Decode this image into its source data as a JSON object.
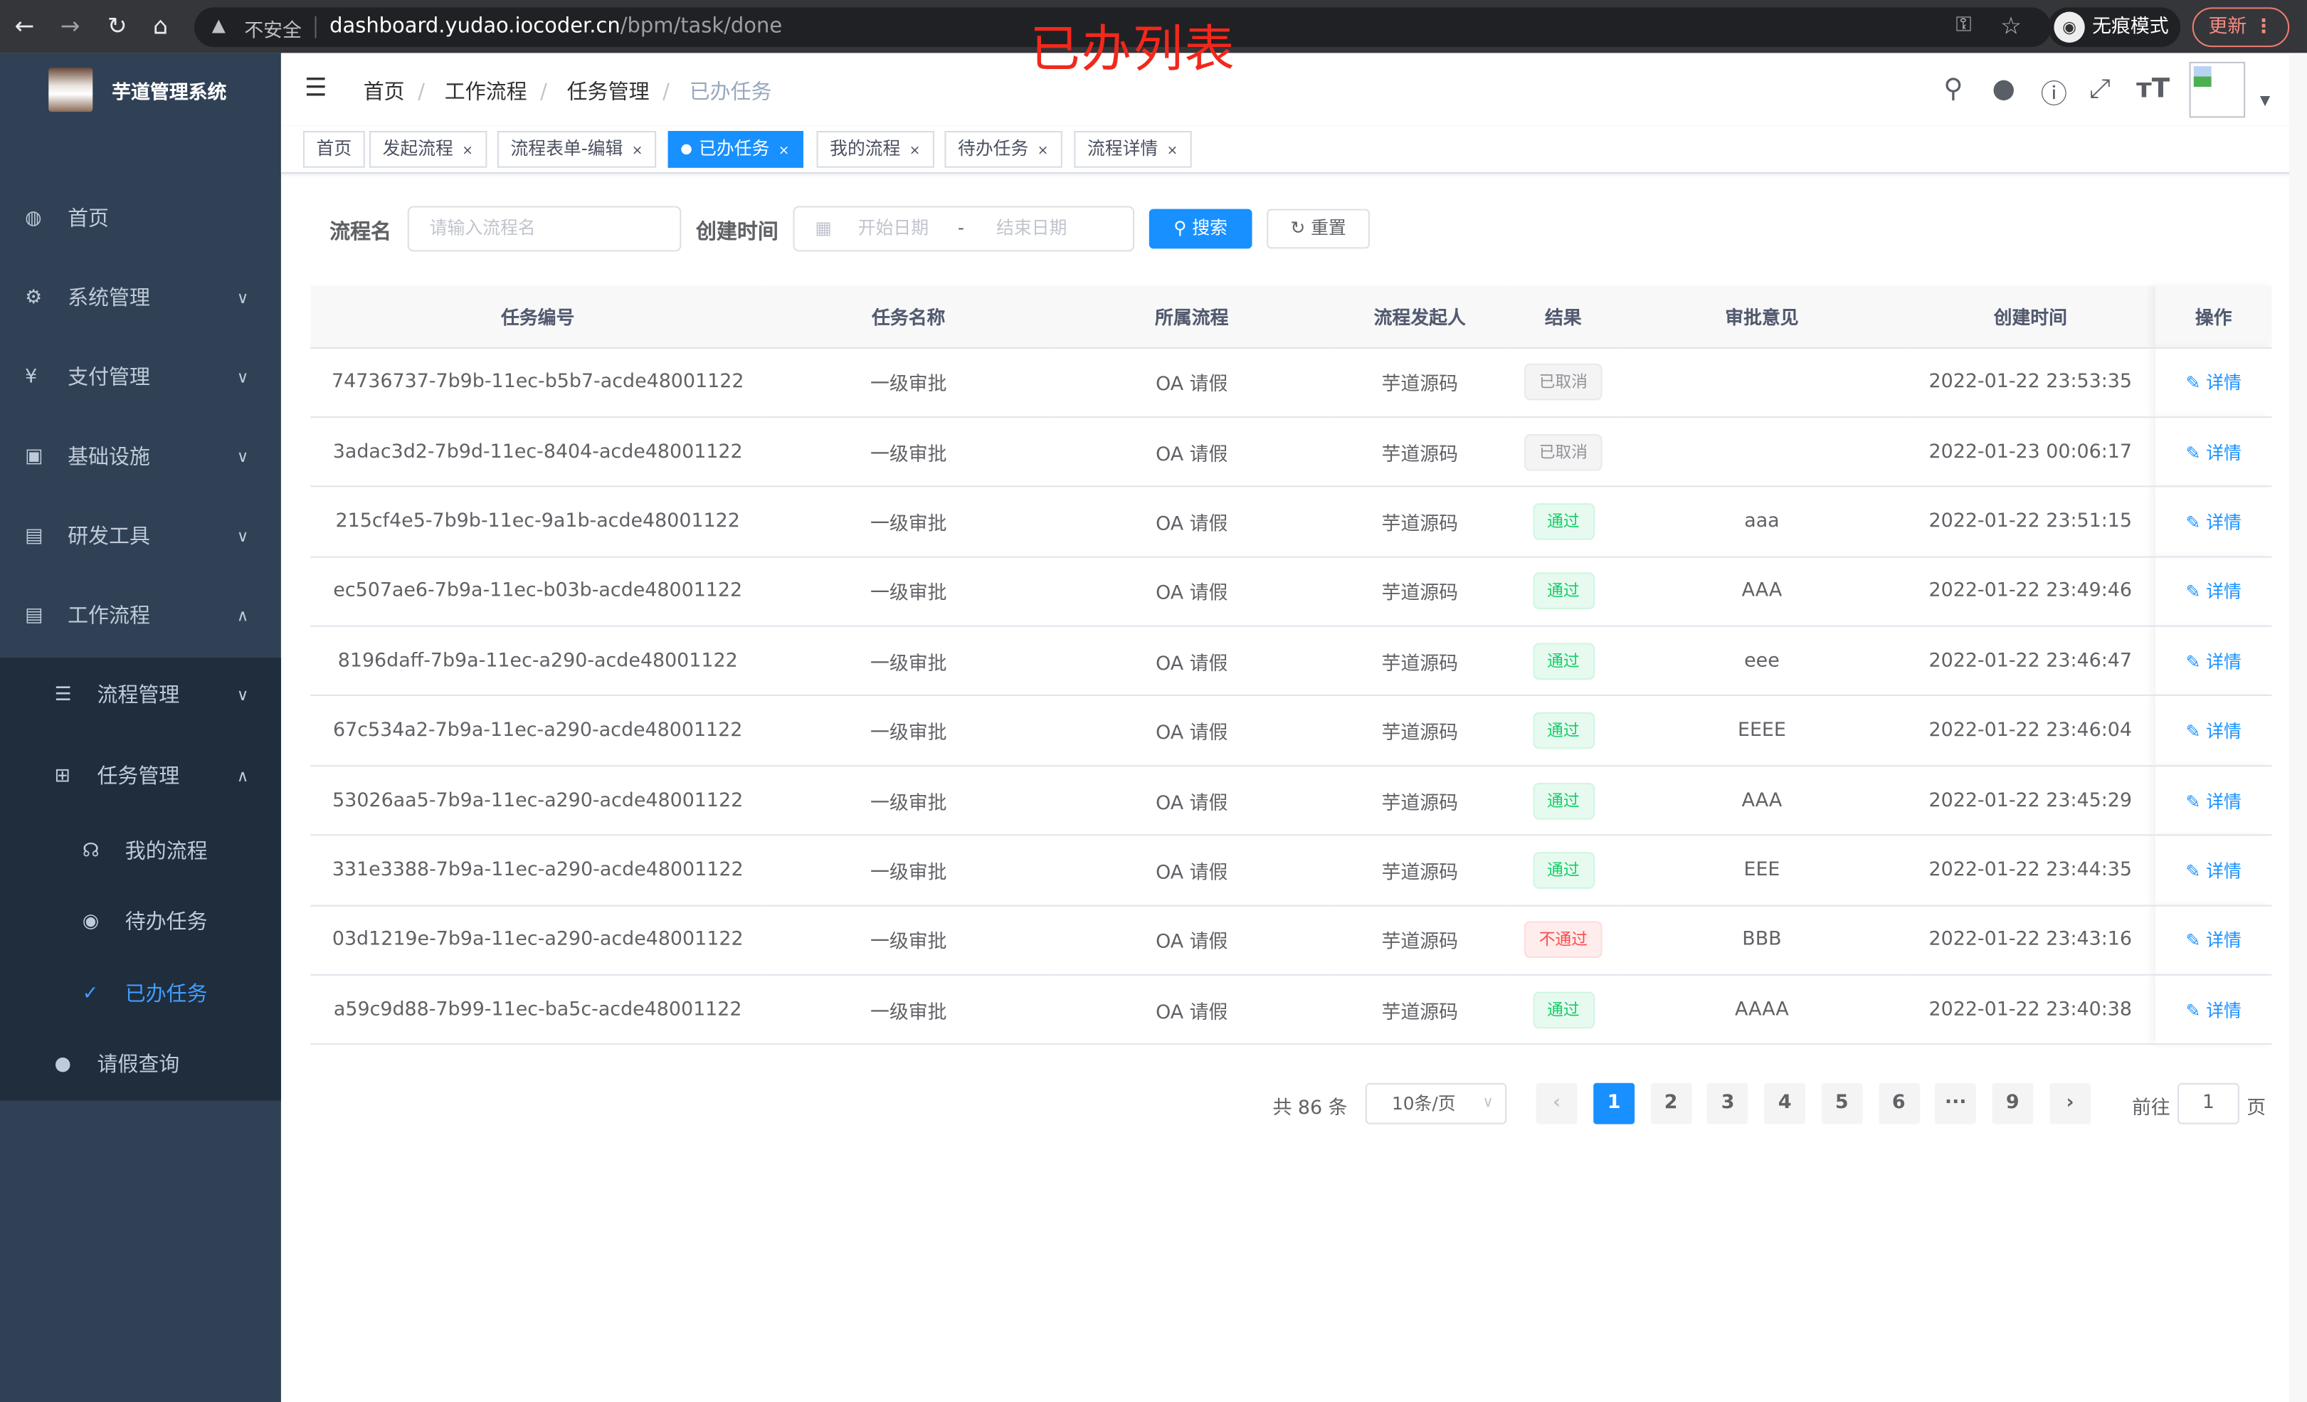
{
  "browser": {
    "insecure_label": "不安全",
    "url_host": "dashboard.yudao.iocoder.cn",
    "url_path": "/bpm/task/done",
    "incognito_label": "无痕模式",
    "update_label": "更新"
  },
  "overlay_title": "已办列表",
  "sidebar": {
    "brand": "芋道管理系统",
    "items": [
      {
        "label": "首页",
        "icon": "dashboard-icon"
      },
      {
        "label": "系统管理",
        "icon": "gear-icon"
      },
      {
        "label": "支付管理",
        "icon": "yen-icon"
      },
      {
        "label": "基础设施",
        "icon": "monitor-icon"
      },
      {
        "label": "研发工具",
        "icon": "toolbox-icon"
      },
      {
        "label": "工作流程",
        "icon": "toolbox-icon"
      },
      {
        "label": "流程管理",
        "icon": "list-icon"
      },
      {
        "label": "任务管理",
        "icon": "tree-icon"
      },
      {
        "label": "我的流程",
        "icon": "headset-icon"
      },
      {
        "label": "待办任务",
        "icon": "eye-icon"
      },
      {
        "label": "已办任务",
        "icon": "done-icon"
      },
      {
        "label": "请假查询",
        "icon": "user-icon"
      }
    ]
  },
  "breadcrumb": [
    "首页",
    "工作流程",
    "任务管理",
    "已办任务"
  ],
  "tags": [
    {
      "label": "首页"
    },
    {
      "label": "发起流程"
    },
    {
      "label": "流程表单-编辑"
    },
    {
      "label": "已办任务",
      "active": true
    },
    {
      "label": "我的流程"
    },
    {
      "label": "待办任务"
    },
    {
      "label": "流程详情"
    }
  ],
  "search": {
    "name_label": "流程名",
    "name_placeholder": "请输入流程名",
    "time_label": "创建时间",
    "start_placeholder": "开始日期",
    "range_sep": "-",
    "end_placeholder": "结束日期",
    "search_btn": "搜索",
    "reset_btn": "重置"
  },
  "table": {
    "headers": [
      "任务编号",
      "任务名称",
      "所属流程",
      "流程发起人",
      "结果",
      "审批意见",
      "创建时间",
      "操作"
    ],
    "detail_label": "详情",
    "rows": [
      [
        "74736737-7b9b-11ec-b5b7-acde48001122",
        "一级审批",
        "OA 请假",
        "芋道源码",
        "已取消",
        "",
        "2022-01-22 23:53:35"
      ],
      [
        "3adac3d2-7b9d-11ec-8404-acde48001122",
        "一级审批",
        "OA 请假",
        "芋道源码",
        "已取消",
        "",
        "2022-01-23 00:06:17"
      ],
      [
        "215cf4e5-7b9b-11ec-9a1b-acde48001122",
        "一级审批",
        "OA 请假",
        "芋道源码",
        "通过",
        "aaa",
        "2022-01-22 23:51:15"
      ],
      [
        "ec507ae6-7b9a-11ec-b03b-acde48001122",
        "一级审批",
        "OA 请假",
        "芋道源码",
        "通过",
        "AAA",
        "2022-01-22 23:49:46"
      ],
      [
        "8196daff-7b9a-11ec-a290-acde48001122",
        "一级审批",
        "OA 请假",
        "芋道源码",
        "通过",
        "eee",
        "2022-01-22 23:46:47"
      ],
      [
        "67c534a2-7b9a-11ec-a290-acde48001122",
        "一级审批",
        "OA 请假",
        "芋道源码",
        "通过",
        "EEEE",
        "2022-01-22 23:46:04"
      ],
      [
        "53026aa5-7b9a-11ec-a290-acde48001122",
        "一级审批",
        "OA 请假",
        "芋道源码",
        "通过",
        "AAA",
        "2022-01-22 23:45:29"
      ],
      [
        "331e3388-7b9a-11ec-a290-acde48001122",
        "一级审批",
        "OA 请假",
        "芋道源码",
        "通过",
        "EEE",
        "2022-01-22 23:44:35"
      ],
      [
        "03d1219e-7b9a-11ec-a290-acde48001122",
        "一级审批",
        "OA 请假",
        "芋道源码",
        "不通过",
        "BBB",
        "2022-01-22 23:43:16"
      ],
      [
        "a59c9d88-7b99-11ec-ba5c-acde48001122",
        "一级审批",
        "OA 请假",
        "芋道源码",
        "通过",
        "AAAA",
        "2022-01-22 23:40:38"
      ]
    ]
  },
  "result_colors": {
    "已取消": {
      "fg": "#909399",
      "bg": "#f4f4f5",
      "border": "#e9e9eb"
    },
    "通过": {
      "fg": "#13ce66",
      "bg": "#e7faf0",
      "border": "#d0f5e0"
    },
    "不通过": {
      "fg": "#ff4949",
      "bg": "#ffeded",
      "border": "#ffdbdb"
    }
  },
  "pagination": {
    "total": "共 86 条",
    "page_size": "10条/页",
    "pages": [
      "1",
      "2",
      "3",
      "4",
      "5",
      "6",
      "···",
      "9"
    ],
    "current": "1",
    "goto_label": "前往",
    "goto_value": "1",
    "page_unit": "页"
  }
}
